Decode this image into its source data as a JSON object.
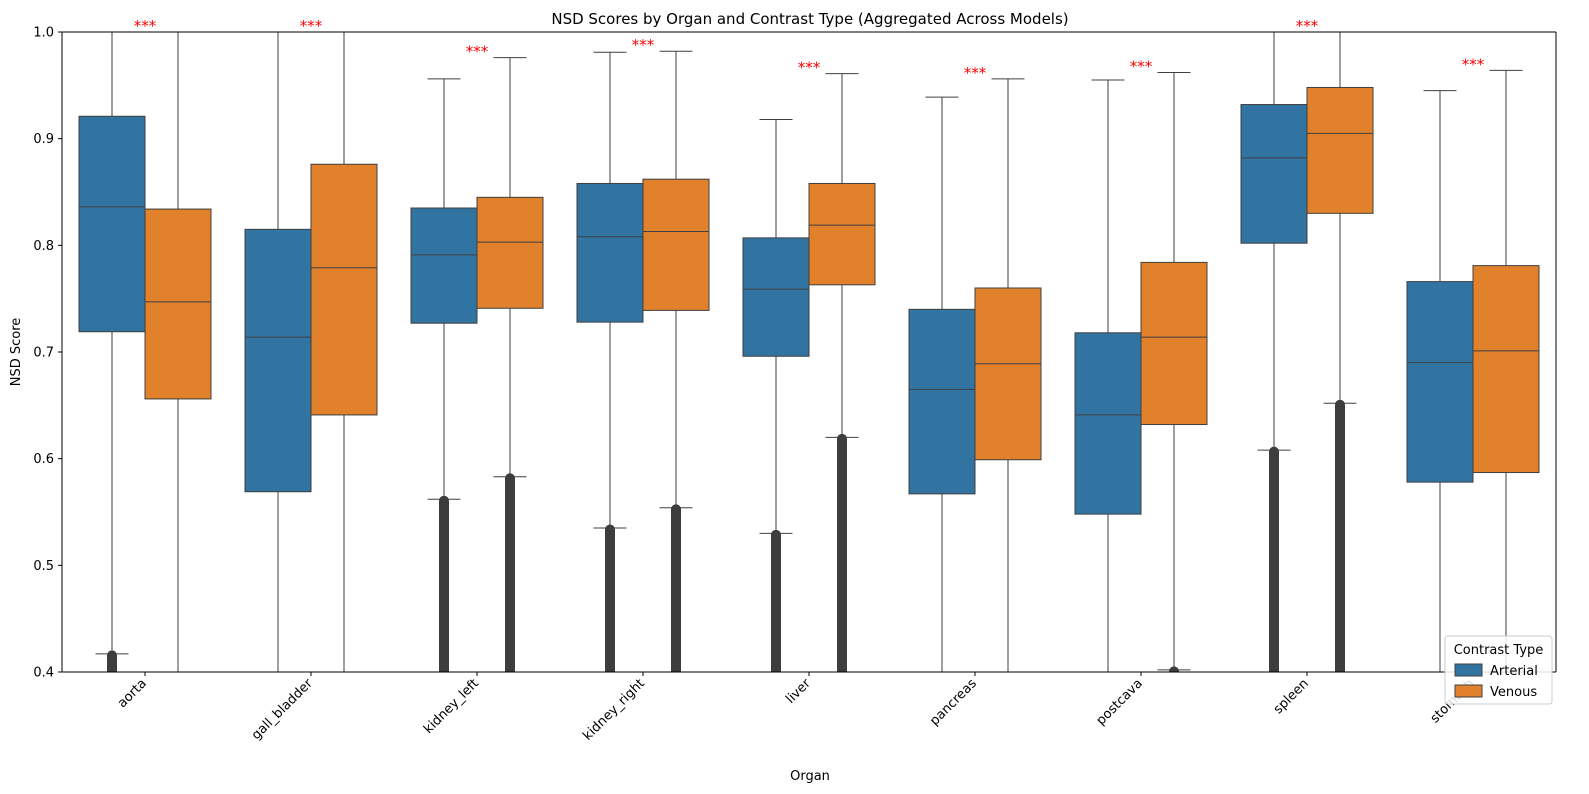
{
  "chart_data": {
    "type": "box",
    "title": "NSD Scores by Organ and Contrast Type (Aggregated Across Models)",
    "xlabel": "Organ",
    "ylabel": "NSD Score",
    "ylim": [
      0.4,
      1.0
    ],
    "yticks": [
      "0.4",
      "0.5",
      "0.6",
      "0.7",
      "0.8",
      "0.9",
      "1.0"
    ],
    "categories": [
      "aorta",
      "gall_bladder",
      "kidney_left",
      "kidney_right",
      "liver",
      "pancreas",
      "postcava",
      "spleen",
      "stomach"
    ],
    "grid": false,
    "legend": {
      "title": "Contrast Type",
      "position": "bottom-right"
    },
    "significance_marker": "***",
    "significance_color": "#ff0000",
    "series": [
      {
        "name": "Arterial",
        "color": "#3274a1",
        "boxes": [
          {
            "whisker_low": 0.417,
            "q1": 0.719,
            "median": 0.836,
            "q3": 0.921,
            "whisker_high": 1.0,
            "has_low_outliers": true
          },
          {
            "whisker_low": 0.4,
            "q1": 0.569,
            "median": 0.714,
            "q3": 0.815,
            "whisker_high": 1.0,
            "has_low_outliers": false
          },
          {
            "whisker_low": 0.562,
            "q1": 0.727,
            "median": 0.791,
            "q3": 0.835,
            "whisker_high": 0.956,
            "has_low_outliers": true
          },
          {
            "whisker_low": 0.535,
            "q1": 0.728,
            "median": 0.808,
            "q3": 0.858,
            "whisker_high": 0.981,
            "has_low_outliers": true
          },
          {
            "whisker_low": 0.53,
            "q1": 0.696,
            "median": 0.759,
            "q3": 0.807,
            "whisker_high": 0.918,
            "has_low_outliers": true
          },
          {
            "whisker_low": 0.4,
            "q1": 0.567,
            "median": 0.665,
            "q3": 0.74,
            "whisker_high": 0.939,
            "has_low_outliers": false
          },
          {
            "whisker_low": 0.4,
            "q1": 0.548,
            "median": 0.641,
            "q3": 0.718,
            "whisker_high": 0.955,
            "has_low_outliers": false
          },
          {
            "whisker_low": 0.608,
            "q1": 0.802,
            "median": 0.882,
            "q3": 0.932,
            "whisker_high": 1.0,
            "has_low_outliers": true
          },
          {
            "whisker_low": 0.4,
            "q1": 0.578,
            "median": 0.69,
            "q3": 0.766,
            "whisker_high": 0.945,
            "has_low_outliers": false
          }
        ]
      },
      {
        "name": "Venous",
        "color": "#e1812c",
        "boxes": [
          {
            "whisker_low": 0.4,
            "q1": 0.656,
            "median": 0.747,
            "q3": 0.834,
            "whisker_high": 1.0,
            "has_low_outliers": false
          },
          {
            "whisker_low": 0.4,
            "q1": 0.641,
            "median": 0.779,
            "q3": 0.876,
            "whisker_high": 1.0,
            "has_low_outliers": false
          },
          {
            "whisker_low": 0.583,
            "q1": 0.741,
            "median": 0.803,
            "q3": 0.845,
            "whisker_high": 0.976,
            "has_low_outliers": true
          },
          {
            "whisker_low": 0.554,
            "q1": 0.739,
            "median": 0.813,
            "q3": 0.862,
            "whisker_high": 0.982,
            "has_low_outliers": true
          },
          {
            "whisker_low": 0.62,
            "q1": 0.763,
            "median": 0.819,
            "q3": 0.858,
            "whisker_high": 0.961,
            "has_low_outliers": true
          },
          {
            "whisker_low": 0.4,
            "q1": 0.599,
            "median": 0.689,
            "q3": 0.76,
            "whisker_high": 0.956,
            "has_low_outliers": false
          },
          {
            "whisker_low": 0.402,
            "q1": 0.632,
            "median": 0.714,
            "q3": 0.784,
            "whisker_high": 0.962,
            "has_low_outliers": true
          },
          {
            "whisker_low": 0.652,
            "q1": 0.83,
            "median": 0.905,
            "q3": 0.948,
            "whisker_high": 1.0,
            "has_low_outliers": true
          },
          {
            "whisker_low": 0.4,
            "q1": 0.587,
            "median": 0.701,
            "q3": 0.781,
            "whisker_high": 0.964,
            "has_low_outliers": false
          }
        ]
      }
    ]
  }
}
